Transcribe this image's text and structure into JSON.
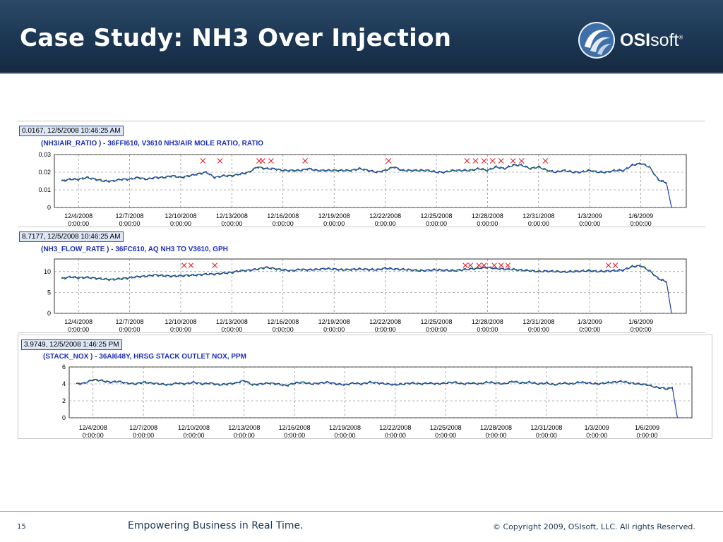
{
  "slide": {
    "title": "Case Study: NH3 Over Injection",
    "logo_text_bold": "OSI",
    "logo_text_light": "soft",
    "logo_reg": "®",
    "page_number": "15",
    "tagline": "Empowering Business in Real Time.",
    "copyright": "© Copyright 2009, OSIsoft, LLC.  All rights Reserved."
  },
  "colors": {
    "header_bg": "#1c3653",
    "series_primary": "#1d2fb8",
    "series_secondary": "#1a8a2a",
    "marker": "#e0202a",
    "stamp_bg": "#dde6f4"
  },
  "chart_data": [
    {
      "type": "line",
      "stamp": "0.0167, 12/5/2008 10:46:25 AM",
      "tag": "(NH3/AIR_RATIO ) - 36FFI610, V3610 NH3/AIR MOLE RATIO, RATIO",
      "x_ticks": [
        "12/4/2008",
        "12/7/2008",
        "12/10/2008",
        "12/13/2008",
        "12/16/2008",
        "12/19/2008",
        "12/22/2008",
        "12/25/2008",
        "12/28/2008",
        "12/31/2008",
        "1/3/2009",
        "1/6/2009"
      ],
      "x_tick_time": "0:00:00",
      "y_ticks": [
        "0.03",
        "0.02",
        "0.01",
        "0"
      ],
      "ylim": [
        0,
        0.03
      ],
      "x_days": [
        0,
        0.5,
        1,
        1.5,
        2,
        2.5,
        3,
        3.5,
        4,
        4.5,
        5,
        5.5,
        6,
        6.5,
        7,
        7.5,
        8,
        8.5,
        9,
        9.5,
        10,
        10.5,
        11,
        11.5,
        12,
        12.5,
        13,
        13.5,
        14,
        14.5,
        15,
        15.5,
        16,
        16.5,
        17,
        17.5,
        18,
        18.5,
        19,
        19.5,
        20,
        20.5,
        21,
        21.5,
        22,
        22.5,
        23,
        23.5,
        24,
        24.5,
        25,
        25.5,
        26,
        26.5,
        27,
        27.5,
        28,
        28.5,
        29,
        29.5,
        30,
        30.5,
        31,
        31.5,
        32,
        32.5,
        33,
        33.5,
        34,
        34.5,
        35,
        35.2,
        35.5,
        35.8,
        36
      ],
      "values": [
        0.015,
        0.016,
        0.016,
        0.017,
        0.016,
        0.015,
        0.015,
        0.016,
        0.016,
        0.017,
        0.016,
        0.017,
        0.017,
        0.018,
        0.017,
        0.018,
        0.019,
        0.02,
        0.017,
        0.018,
        0.018,
        0.019,
        0.02,
        0.023,
        0.022,
        0.022,
        0.021,
        0.021,
        0.021,
        0.022,
        0.021,
        0.021,
        0.021,
        0.021,
        0.021,
        0.022,
        0.021,
        0.02,
        0.021,
        0.023,
        0.021,
        0.021,
        0.021,
        0.021,
        0.02,
        0.02,
        0.021,
        0.021,
        0.021,
        0.022,
        0.021,
        0.023,
        0.022,
        0.024,
        0.024,
        0.022,
        0.023,
        0.021,
        0.02,
        0.021,
        0.02,
        0.02,
        0.021,
        0.02,
        0.02,
        0.021,
        0.021,
        0.024,
        0.025,
        0.023,
        0.016,
        0.015,
        0.014,
        0.0,
        0.0
      ],
      "markers_days": [
        8.3,
        9.3,
        11.6,
        11.8,
        12.3,
        14.3,
        19.2,
        23.8,
        24.3,
        24.8,
        25.3,
        25.8,
        26.5,
        27.0,
        28.4
      ],
      "unit_note": "RATIO"
    },
    {
      "type": "line",
      "stamp": "8.7177, 12/5/2008 10:46:25 AM",
      "tag": "(NH3_FLOW_RATE ) - 36FC610, AQ NH3 TO V3610, GPH",
      "x_ticks": [
        "12/4/2008",
        "12/7/2008",
        "12/10/2008",
        "12/13/2008",
        "12/16/2008",
        "12/19/2008",
        "12/22/2008",
        "12/25/2008",
        "12/28/2008",
        "12/31/2008",
        "1/3/2009",
        "1/6/2009"
      ],
      "x_tick_time": "0:00:00",
      "y_ticks": [
        "10",
        "5",
        "0"
      ],
      "ylim": [
        0,
        13
      ],
      "x_days": [
        0,
        0.5,
        1,
        1.5,
        2,
        2.5,
        3,
        3.5,
        4,
        4.5,
        5,
        5.5,
        6,
        6.5,
        7,
        7.5,
        8,
        8.5,
        9,
        9.5,
        10,
        10.5,
        11,
        11.5,
        12,
        12.5,
        13,
        13.5,
        14,
        14.5,
        15,
        15.5,
        16,
        16.5,
        17,
        17.5,
        18,
        18.5,
        19,
        19.5,
        20,
        20.5,
        21,
        21.5,
        22,
        22.5,
        23,
        23.5,
        24,
        24.5,
        25,
        25.5,
        26,
        26.5,
        27,
        27.5,
        28,
        28.5,
        29,
        29.5,
        30,
        30.5,
        31,
        31.5,
        32,
        32.5,
        33,
        33.5,
        34,
        34.5,
        35,
        35.2,
        35.5,
        35.8,
        36
      ],
      "values": [
        8.3,
        8.7,
        8.5,
        8.6,
        8.4,
        8.2,
        8.1,
        8.3,
        8.5,
        8.8,
        8.9,
        9.2,
        9.0,
        8.9,
        9.0,
        9.1,
        9.2,
        9.4,
        9.4,
        9.6,
        9.8,
        10.2,
        10.3,
        10.6,
        11.0,
        10.7,
        10.4,
        10.2,
        10.5,
        10.4,
        10.5,
        10.7,
        10.6,
        10.4,
        10.5,
        10.6,
        10.5,
        10.4,
        10.8,
        10.6,
        10.5,
        10.4,
        10.2,
        10.3,
        10.4,
        10.3,
        10.2,
        10.4,
        10.6,
        10.8,
        11.0,
        10.7,
        10.6,
        10.5,
        10.3,
        10.2,
        10.0,
        10.1,
        10.0,
        9.9,
        10.0,
        10.1,
        10.2,
        10.0,
        10.1,
        10.2,
        10.4,
        11.2,
        11.4,
        10.2,
        8.4,
        8.0,
        7.6,
        0.0,
        0.0
      ],
      "markers_days": [
        7.2,
        7.6,
        9.0,
        23.7,
        24.0,
        24.5,
        24.8,
        25.4,
        25.8,
        26.2,
        32.1,
        32.5
      ]
    },
    {
      "type": "line",
      "stamp": "3.9749, 12/5/2008 1:46:25 PM",
      "tag": "(STACK_NOX ) - 36AI648Y, HRSG STACK OUTLET NOX, PPM",
      "x_ticks": [
        "12/4/2008",
        "12/7/2008",
        "12/10/2008",
        "12/13/2008",
        "12/16/2008",
        "12/19/2008",
        "12/22/2008",
        "12/25/2008",
        "12/28/2008",
        "12/31/2008",
        "1/3/2009",
        "1/6/2009"
      ],
      "x_tick_time": "0:00:00",
      "y_ticks": [
        "6",
        "4",
        "2",
        "0"
      ],
      "ylim": [
        0,
        6
      ],
      "x_days": [
        0,
        0.5,
        1,
        1.5,
        2,
        2.5,
        3,
        3.5,
        4,
        4.5,
        5,
        5.5,
        6,
        6.5,
        7,
        7.5,
        8,
        8.5,
        9,
        9.5,
        10,
        10.5,
        11,
        11.5,
        12,
        12.5,
        13,
        13.5,
        14,
        14.5,
        15,
        15.5,
        16,
        16.5,
        17,
        17.5,
        18,
        18.5,
        19,
        19.5,
        20,
        20.5,
        21,
        21.5,
        22,
        22.5,
        23,
        23.5,
        24,
        24.5,
        25,
        25.5,
        26,
        26.5,
        27,
        27.5,
        28,
        28.5,
        29,
        29.5,
        30,
        30.5,
        31,
        31.5,
        32,
        32.5,
        33,
        33.5,
        34,
        34.5,
        35,
        35.2,
        35.5,
        35.8,
        36
      ],
      "values": [
        4.0,
        4.1,
        4.5,
        4.4,
        4.2,
        4.3,
        4.1,
        4.0,
        4.2,
        4.1,
        4.0,
        3.9,
        4.1,
        4.0,
        4.2,
        4.0,
        4.1,
        3.9,
        4.0,
        4.1,
        4.4,
        3.9,
        4.0,
        4.1,
        4.0,
        3.8,
        4.1,
        4.2,
        4.0,
        4.1,
        4.2,
        4.0,
        3.9,
        4.1,
        4.0,
        4.2,
        4.1,
        4.0,
        3.9,
        4.0,
        4.1,
        4.0,
        4.1,
        4.0,
        4.1,
        4.2,
        4.0,
        4.1,
        4.0,
        4.2,
        4.1,
        4.0,
        4.3,
        4.1,
        4.2,
        4.0,
        4.1,
        3.9,
        4.1,
        4.0,
        4.2,
        4.1,
        4.0,
        4.1,
        4.2,
        4.3,
        4.1,
        4.0,
        3.9,
        3.6,
        3.5,
        3.4,
        3.6,
        0.0,
        0.0
      ]
    }
  ]
}
